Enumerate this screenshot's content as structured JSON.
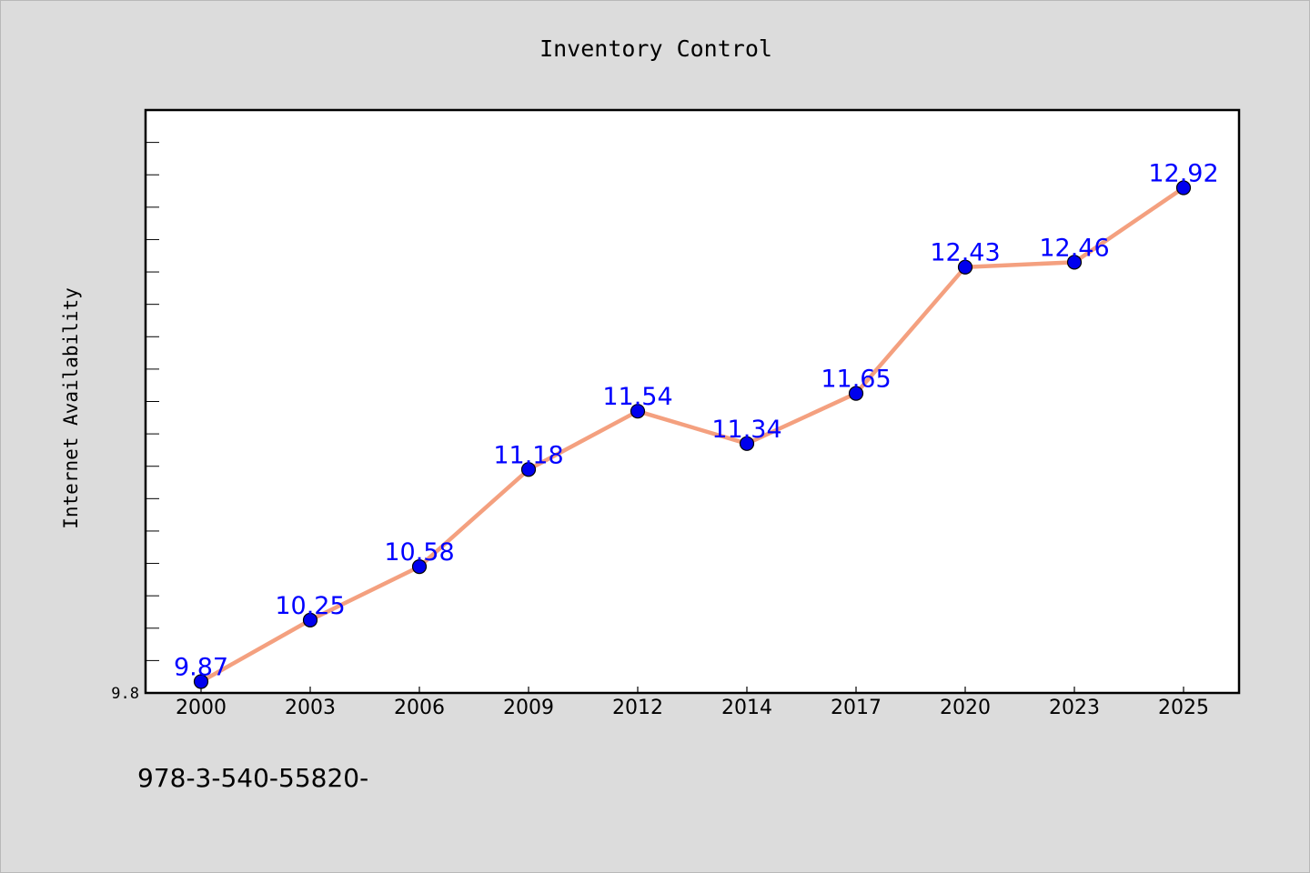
{
  "chart_data": {
    "type": "line",
    "title": "Inventory Control",
    "xlabel": "",
    "ylabel": "Internet Availability",
    "categories": [
      "2000",
      "2003",
      "2006",
      "2009",
      "2012",
      "2014",
      "2017",
      "2020",
      "2023",
      "2025"
    ],
    "series": [
      {
        "values": [
          9.87,
          10.25,
          10.58,
          11.18,
          11.54,
          11.34,
          11.65,
          12.43,
          12.46,
          12.92
        ],
        "data_labels": [
          "9.87",
          "10.25",
          "10.58",
          "11.18",
          "11.54",
          "11.34",
          "11.65",
          "12.43",
          "12.46",
          "12.92"
        ]
      }
    ],
    "ylim": [
      9.8,
      13.4
    ],
    "y_tick_labels": [
      "9.8"
    ],
    "y_minor_tick_step": 0.2,
    "grid": false,
    "legend": "none",
    "colors": {
      "line": "#f4a07f",
      "marker": "#0000ee",
      "label": "#0000ff",
      "background": "#dcdcdc",
      "plot_background": "#ffffff"
    }
  },
  "footer_text": "978-3-540-55820-"
}
